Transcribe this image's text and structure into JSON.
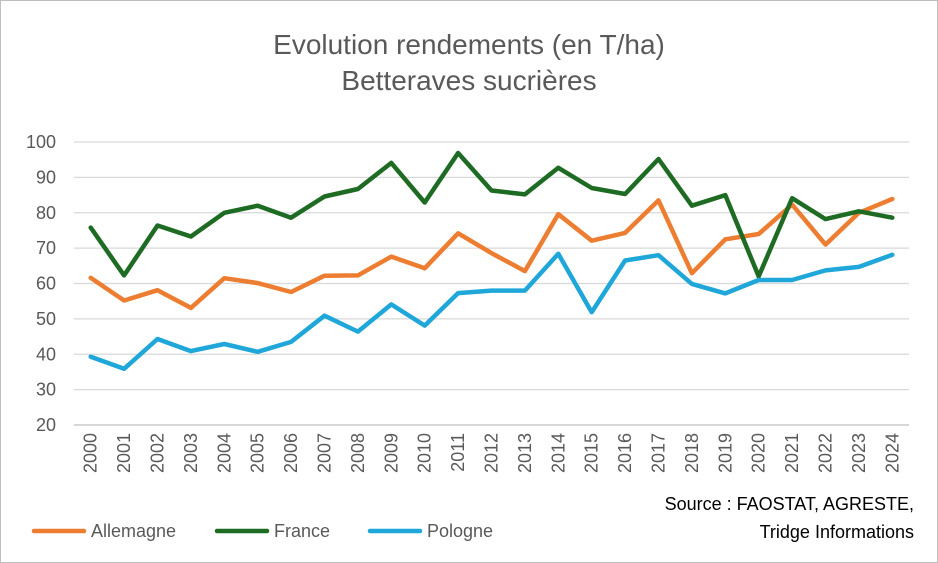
{
  "chart_data": {
    "type": "line",
    "title_lines": [
      "Evolution rendements (en T/ha)",
      "Betteraves sucrières"
    ],
    "categories": [
      "2000",
      "2001",
      "2002",
      "2003",
      "2004",
      "2005",
      "2006",
      "2007",
      "2008",
      "2009",
      "2010",
      "2011",
      "2012",
      "2013",
      "2014",
      "2015",
      "2016",
      "2017",
      "2018",
      "2019",
      "2020",
      "2021",
      "2022",
      "2023",
      "2024"
    ],
    "series": [
      {
        "name": "Allemagne",
        "color": "#ED7D31",
        "values": [
          61.6,
          55.2,
          58.1,
          53.1,
          61.5,
          60.1,
          57.6,
          62.2,
          62.3,
          67.6,
          64.3,
          74.2,
          68.6,
          63.5,
          79.6,
          72.1,
          74.3,
          83.5,
          62.9,
          72.5,
          74.0,
          82.3,
          71.0,
          80.0,
          83.9
        ]
      },
      {
        "name": "France",
        "color": "#1E6B23",
        "values": [
          75.8,
          62.3,
          76.4,
          73.3,
          80.0,
          82.0,
          78.6,
          84.6,
          86.7,
          94.1,
          82.9,
          96.9,
          86.3,
          85.2,
          92.7,
          87.0,
          85.3,
          95.2,
          82.0,
          85.0,
          62.0,
          84.1,
          78.2,
          80.4,
          78.6
        ]
      },
      {
        "name": "Pologne",
        "color": "#1FA7DA",
        "values": [
          39.3,
          35.9,
          44.3,
          40.9,
          42.9,
          40.7,
          43.5,
          50.9,
          46.4,
          54.1,
          48.1,
          57.3,
          58.0,
          58.0,
          68.4,
          51.9,
          66.5,
          68.0,
          59.9,
          57.2,
          61.0,
          61.0,
          63.7,
          64.7,
          68.1
        ]
      }
    ],
    "yticks": [
      20,
      30,
      40,
      50,
      60,
      70,
      80,
      90,
      100
    ],
    "ylim": [
      20,
      100
    ],
    "grid": true,
    "legend_position": "bottom-left",
    "source_lines": [
      "Source : FAOSTAT, AGRESTE,",
      "Tridge Informations"
    ]
  }
}
